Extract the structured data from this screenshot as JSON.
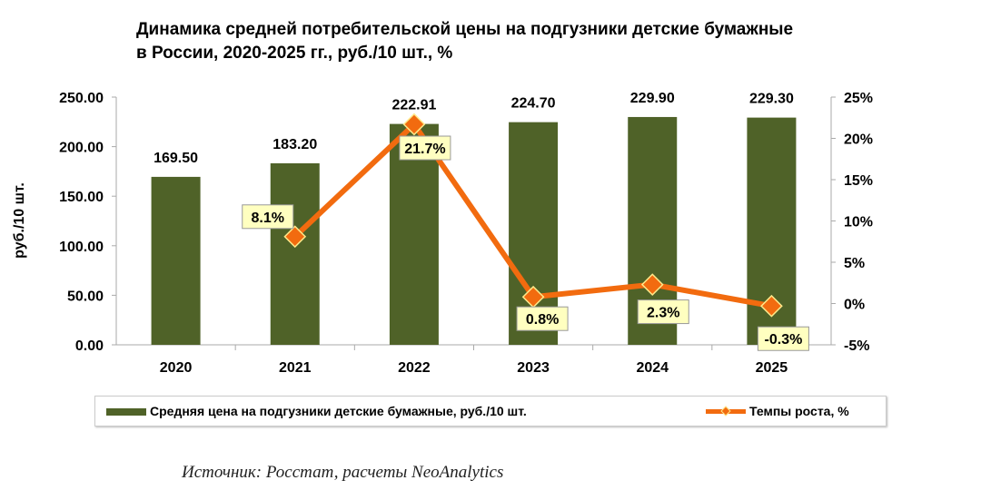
{
  "chart_data": {
    "type": "bar+line",
    "title_line1": "Динамика средней потребительской цены на подгузники детские бумажные",
    "title_line2": "в России, 2020-2025 гг., руб./10 шт., %",
    "categories": [
      "2020",
      "2021",
      "2022",
      "2023",
      "2024",
      "2025"
    ],
    "series": [
      {
        "name": "Средняя цена на подгузники детские бумажные, руб./10 шт.",
        "type": "bar",
        "axis": "left",
        "color": "#4f6228",
        "values": [
          169.5,
          183.2,
          222.91,
          224.7,
          229.9,
          229.3
        ],
        "labels": [
          "169.50",
          "183.20",
          "222.91",
          "224.70",
          "229.90",
          "229.30"
        ]
      },
      {
        "name": "Темпы роста, %",
        "type": "line",
        "axis": "right",
        "color": "#f26b0f",
        "values": [
          null,
          8.1,
          21.7,
          0.8,
          2.3,
          -0.3
        ],
        "labels": [
          "",
          "8.1%",
          "21.7%",
          "0.8%",
          "2.3%",
          "-0.3%"
        ]
      }
    ],
    "ylabel": "руб./10 шт.",
    "ylim": [
      0,
      250
    ],
    "yticks": [
      "0.00",
      "50.00",
      "100.00",
      "150.00",
      "200.00",
      "250.00"
    ],
    "y2lim": [
      -5,
      25
    ],
    "y2ticks": [
      "-5%",
      "0%",
      "5%",
      "10%",
      "15%",
      "20%",
      "25%"
    ],
    "grid": false,
    "legend": "bottom"
  },
  "source": "Источник: Росстат, расчеты NeoAnalytics"
}
